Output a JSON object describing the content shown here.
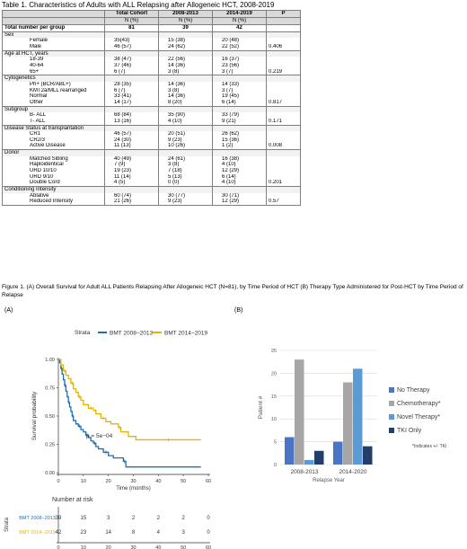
{
  "table": {
    "title": "Table 1.  Characteristics of Adults with ALL Relapsing after Allogeneic HCT, 2008-2019",
    "columns": [
      "",
      "Total Cohort",
      "2008-2013",
      "2014-2019",
      "P"
    ],
    "subheaders": [
      "",
      "N (%)",
      "N (%)",
      "N (%)",
      ""
    ],
    "total_row": {
      "label": "Total number per group",
      "values": [
        "81",
        "39",
        "42",
        ""
      ]
    },
    "rows": [
      {
        "kind": "cat",
        "cells": [
          "Sex",
          "",
          "",
          "",
          ""
        ]
      },
      {
        "kind": "sub",
        "cells": [
          "Female",
          "35(43)",
          "15 (38)",
          "20 (48)",
          ""
        ]
      },
      {
        "kind": "sub",
        "cells": [
          "Male",
          "46 (57)",
          "24 (62)",
          "22 (52)",
          "0.406"
        ]
      },
      {
        "kind": "cat",
        "cells": [
          "Age at HCT, years",
          "",
          "",
          "",
          ""
        ]
      },
      {
        "kind": "sub",
        "cells": [
          "18-39",
          "38 (47)",
          "22 (56)",
          "16 (37)",
          ""
        ]
      },
      {
        "kind": "sub",
        "cells": [
          "40-64",
          "37 (46)",
          "14 (36)",
          "23 (56)",
          ""
        ]
      },
      {
        "kind": "sub",
        "cells": [
          "65+",
          "6 (7)",
          "3 (8)",
          "3 (7)",
          "0.219"
        ]
      },
      {
        "kind": "cat",
        "cells": [
          "Cytogenetics",
          "",
          "",
          "",
          ""
        ]
      },
      {
        "kind": "sub",
        "cells": [
          "Ph+ (BCR/ABL+)",
          "28 (35)",
          "14 (36)",
          "14 (33)",
          ""
        ]
      },
      {
        "kind": "sub",
        "cells": [
          "KMT2a/MLL rearranged",
          "6 (7)",
          "3 (8)",
          "3 (7)",
          ""
        ]
      },
      {
        "kind": "sub",
        "cells": [
          "Normal",
          "33 (41)",
          "14 (36)",
          "19 (45)",
          ""
        ]
      },
      {
        "kind": "sub",
        "cells": [
          "Other",
          "14 (17)",
          "8 (20)",
          "6 (14)",
          "0.817"
        ]
      },
      {
        "kind": "cat",
        "cells": [
          "Subgroup",
          "",
          "",
          "",
          ""
        ]
      },
      {
        "kind": "sub",
        "cells": [
          "B- ALL",
          "68 (84)",
          "35 (90)",
          "33 (79)",
          ""
        ]
      },
      {
        "kind": "sub",
        "cells": [
          "T- ALL",
          "13 (16)",
          "4 (10)",
          "9 (21)",
          "0.171"
        ]
      },
      {
        "kind": "cat",
        "cells": [
          "Disease Status at transplantation",
          "",
          "",
          "",
          ""
        ]
      },
      {
        "kind": "sub",
        "cells": [
          "CR1",
          "46 (57)",
          "20 (51)",
          "26 (62)",
          ""
        ]
      },
      {
        "kind": "sub",
        "cells": [
          "CR2/3",
          "24 (30)",
          "9 (23)",
          "15 (36)",
          ""
        ]
      },
      {
        "kind": "sub",
        "cells": [
          "Active Disease",
          "11 (13)",
          "10 (26)",
          "1 (2)",
          "0.008"
        ]
      },
      {
        "kind": "cat",
        "cells": [
          "Donor",
          "",
          "",
          "",
          ""
        ]
      },
      {
        "kind": "sub",
        "cells": [
          "Matched Sibling",
          "40 (49)",
          "24 (61)",
          "16 (38)",
          ""
        ]
      },
      {
        "kind": "sub",
        "cells": [
          "Haploidentical",
          "7 (9)",
          "3 (8)",
          "4 (10)",
          ""
        ]
      },
      {
        "kind": "sub",
        "cells": [
          "URD 10/10",
          "19 (23)",
          "7 (18)",
          "12 (29)",
          ""
        ]
      },
      {
        "kind": "sub",
        "cells": [
          "URD 9/10",
          "11 (14)",
          "5 (13)",
          "6 (14)",
          ""
        ]
      },
      {
        "kind": "sub",
        "cells": [
          "Double Cord",
          "4 (5)",
          "0 (0)",
          "4 (10)",
          "0.201"
        ]
      },
      {
        "kind": "cat",
        "cells": [
          "Conditioning Intensity",
          "",
          "",
          "",
          ""
        ]
      },
      {
        "kind": "sub",
        "cells": [
          "Ablative",
          "60 (74)",
          "30 (77)",
          "30 (71)",
          ""
        ]
      },
      {
        "kind": "sub",
        "cells": [
          "Reduced Intensity",
          "21 (26)",
          "9 (23)",
          "12 (29)",
          "0.57"
        ]
      }
    ]
  },
  "figure": {
    "caption": "Figure 1. (A) Overall Survival for Adult ALL Patients Relapsing After Allogeneic HCT (N=81), by Time Period of HCT (B) Therapy Type Administered for Post-HCT by Time Period of Relapse",
    "panel_a_label": "(A)",
    "panel_b_label": "(B)"
  },
  "colors": {
    "bmt_2008": "#1f6fb4",
    "bmt_2014": "#e6b400",
    "no_therapy": "#4a74c4",
    "chemotherapy": "#a6a6a6",
    "novel_therapy": "#5b9bd5",
    "tki_only": "#223e6a"
  },
  "chart_data": [
    {
      "type": "line",
      "subtype": "kaplan-meier",
      "legend_title": "Strata",
      "xlabel": "Time (months)",
      "ylabel": "Survival probability",
      "xlim": [
        0,
        60
      ],
      "ylim": [
        0,
        1
      ],
      "x_ticks": [
        "0",
        "10",
        "20",
        "30",
        "40",
        "50",
        "60"
      ],
      "y_ticks": [
        "0.00",
        "0.25",
        "0.50",
        "0.75",
        "1.00"
      ],
      "annotation": "p = 5e−04",
      "series": [
        {
          "name": "BMT 2008−2013",
          "color": "#1f6fb4",
          "x": [
            0,
            0.5,
            1,
            1.5,
            2,
            2.5,
            3,
            3.5,
            4,
            4.5,
            5,
            5.5,
            6,
            7,
            8,
            9,
            10,
            11,
            12,
            13,
            14,
            15,
            16,
            18,
            20,
            22,
            26,
            27,
            57
          ],
          "y": [
            1.0,
            0.97,
            0.92,
            0.87,
            0.82,
            0.77,
            0.72,
            0.67,
            0.62,
            0.58,
            0.54,
            0.5,
            0.46,
            0.43,
            0.41,
            0.38,
            0.36,
            0.33,
            0.31,
            0.28,
            0.26,
            0.23,
            0.21,
            0.18,
            0.15,
            0.13,
            0.1,
            0.05,
            0.05
          ]
        },
        {
          "name": "BMT 2014−2019",
          "color": "#e6b400",
          "x": [
            0,
            1,
            2,
            3,
            4,
            5,
            6,
            7,
            8,
            9,
            10,
            12,
            14,
            15,
            17,
            19,
            21,
            24,
            25,
            28,
            31,
            57
          ],
          "y": [
            1.0,
            0.95,
            0.9,
            0.86,
            0.83,
            0.79,
            0.74,
            0.71,
            0.67,
            0.64,
            0.6,
            0.57,
            0.55,
            0.52,
            0.48,
            0.45,
            0.43,
            0.4,
            0.36,
            0.32,
            0.29,
            0.29
          ]
        }
      ]
    },
    {
      "type": "table",
      "title": "Number at risk",
      "row_axis_label": "Strata",
      "xlabel": "Time (months)",
      "columns": [
        "0",
        "10",
        "20",
        "30",
        "40",
        "50",
        "60"
      ],
      "rows": [
        {
          "name": "BMT 2008−2013",
          "values": [
            "39",
            "15",
            "3",
            "2",
            "2",
            "2",
            "0"
          ]
        },
        {
          "name": "BMT 2014−2019",
          "values": [
            "42",
            "23",
            "14",
            "8",
            "4",
            "3",
            "0"
          ]
        }
      ]
    },
    {
      "type": "bar",
      "xlabel": "Relapse Year",
      "ylabel": "Patient #",
      "ylim": [
        0,
        25
      ],
      "y_ticks": [
        "0",
        "5",
        "10",
        "15",
        "20",
        "25"
      ],
      "categories": [
        "2008-2013",
        "2014-2020"
      ],
      "legend_placement": "right",
      "note": "*Indicates +/- TKI",
      "series": [
        {
          "name": "No Therapy",
          "color": "#4a74c4",
          "values": [
            6,
            5
          ]
        },
        {
          "name": "Chemotherapy*",
          "color": "#a6a6a6",
          "values": [
            23,
            18
          ]
        },
        {
          "name": "Novel Therapy*",
          "color": "#5b9bd5",
          "values": [
            1,
            21
          ]
        },
        {
          "name": "TKI Only",
          "color": "#223e6a",
          "values": [
            3,
            4
          ]
        }
      ]
    }
  ]
}
